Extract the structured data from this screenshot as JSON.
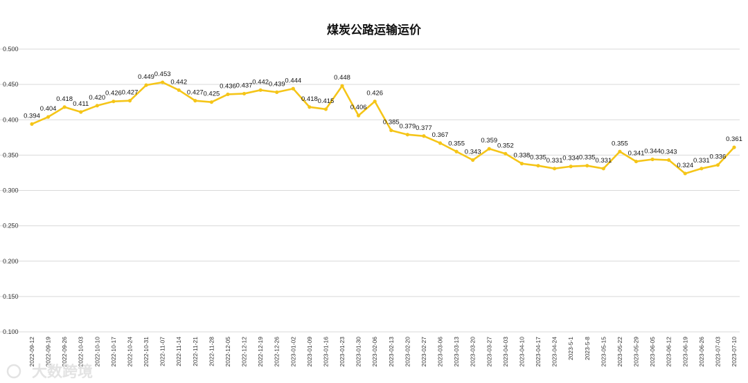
{
  "chart_data": {
    "type": "line",
    "title": "煤炭公路运输运价",
    "ylim": [
      0.1,
      0.5
    ],
    "yticks": [
      "0.100",
      "0.150",
      "0.200",
      "0.250",
      "0.300",
      "0.350",
      "0.400",
      "0.450",
      "0.500"
    ],
    "grid": true,
    "categories": [
      "2022-09-12",
      "2022-09-19",
      "2022-09-26",
      "2022-10-03",
      "2022-10-10",
      "2022-10-17",
      "2022-10-24",
      "2022-10-31",
      "2022-11-07",
      "2022-11-14",
      "2022-11-21",
      "2022-11-28",
      "2022-12-05",
      "2022-12-12",
      "2022-12-19",
      "2022-12-26",
      "2023-01-02",
      "2023-01-09",
      "2023-01-16",
      "2023-01-23",
      "2023-01-30",
      "2023-02-06",
      "2023-02-13",
      "2023-02-20",
      "2023-02-27",
      "2023-03-06",
      "2023-03-13",
      "2023-03-20",
      "2023-03-27",
      "2023-04-03",
      "2023-04-10",
      "2023-04-17",
      "2023-04-24",
      "2023-5-1",
      "2023-5-8",
      "2023-05-15",
      "2023-05-22",
      "2023-05-29",
      "2023-06-05",
      "2023-06-12",
      "2023-06-19",
      "2023-06-26",
      "2023-07-03",
      "2023-07-10"
    ],
    "series": [
      {
        "values": [
          0.394,
          0.404,
          0.418,
          0.411,
          0.42,
          0.426,
          0.427,
          0.449,
          0.453,
          0.442,
          0.427,
          0.425,
          0.436,
          0.437,
          0.442,
          0.439,
          0.444,
          0.418,
          0.415,
          0.448,
          0.406,
          0.426,
          0.385,
          0.379,
          0.377,
          0.367,
          0.355,
          0.343,
          0.359,
          0.352,
          0.338,
          0.335,
          0.331,
          0.334,
          0.335,
          0.331,
          0.355,
          0.341,
          0.344,
          0.343,
          0.324,
          0.331,
          0.336,
          0.361
        ],
        "labels": [
          "0.394",
          "0.404",
          "0.418",
          "0.411",
          "0.420",
          "0.426",
          "0.427",
          "0.449",
          "0.453",
          "0.442",
          "0.427",
          "0.425",
          "0.436",
          "0.437",
          "0.442",
          "0.439",
          "0.444",
          "0.418",
          "0.415",
          "0.448",
          "0.406",
          "0.426",
          "0.385",
          "0.379",
          "0.377",
          "0.367",
          "0.355",
          "0.343",
          "0.359",
          "0.352",
          "0.338",
          "0.335",
          "0.331",
          "0.334",
          "0.335",
          "0.331",
          "0.355",
          "0.341",
          "0.344",
          "0.343",
          "0.324",
          "0.331",
          "0.336",
          "0.361"
        ],
        "color": "#f5c518"
      }
    ]
  },
  "watermark": "大数跨境"
}
